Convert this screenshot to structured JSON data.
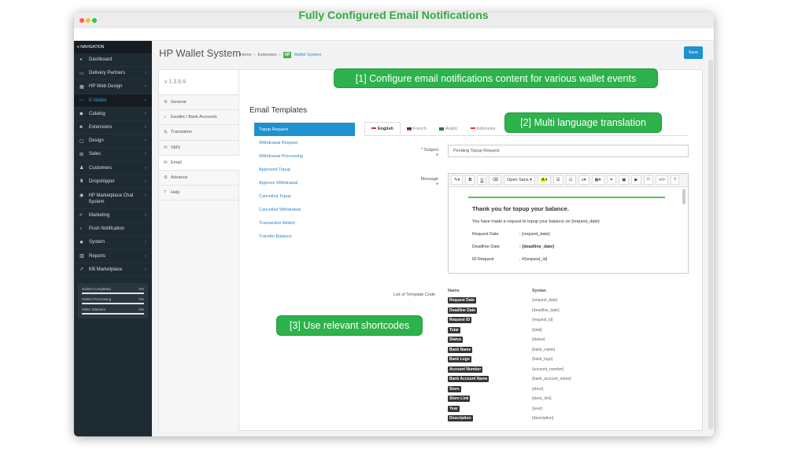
{
  "headline": "Fully Configured Email Notifications",
  "nav": {
    "header": "≡ NAVIGATION",
    "items": [
      {
        "label": "Dashboard",
        "icon": "dashboard-icon",
        "glyph": "◕",
        "chev": false
      },
      {
        "label": "Delivery Partners",
        "icon": "card-icon",
        "glyph": "▭",
        "chev": true
      },
      {
        "label": "HP Web Design",
        "icon": "windows-icon",
        "glyph": "▦",
        "chev": true
      },
      {
        "label": "E-Wallet",
        "icon": "wallet-icon",
        "glyph": "▭",
        "chev": true,
        "active": true
      },
      {
        "label": "Catalog",
        "icon": "tags-icon",
        "glyph": "◆",
        "chev": true
      },
      {
        "label": "Extensions",
        "icon": "puzzle-icon",
        "glyph": "♣",
        "chev": true
      },
      {
        "label": "Design",
        "icon": "desktop-icon",
        "glyph": "▢",
        "chev": true
      },
      {
        "label": "Sales",
        "icon": "cart-icon",
        "glyph": "⊞",
        "chev": true
      },
      {
        "label": "Customers",
        "icon": "user-icon",
        "glyph": "♟",
        "chev": true
      },
      {
        "label": "Dropshipper",
        "icon": "users-icon",
        "glyph": "♜",
        "chev": true
      },
      {
        "label": "HP Marketplace Chat System",
        "icon": "chat-icon",
        "glyph": "◉",
        "chev": true,
        "tall": true
      },
      {
        "label": "Marketing",
        "icon": "share-icon",
        "glyph": "<",
        "chev": true
      },
      {
        "label": "Push Notification",
        "icon": "bell-icon",
        "glyph": "♪",
        "chev": false
      },
      {
        "label": "System",
        "icon": "gear-icon",
        "glyph": "✹",
        "chev": true
      },
      {
        "label": "Reports",
        "icon": "bar-chart-icon",
        "glyph": "▥",
        "chev": true
      },
      {
        "label": "KB Marketplace",
        "icon": "line-chart-icon",
        "glyph": "↗",
        "chev": true
      }
    ],
    "stats": [
      {
        "label": "Orders Completed",
        "value": "0%"
      },
      {
        "label": "Orders Processing",
        "value": "0%"
      },
      {
        "label": "Other Statuses",
        "value": "0%"
      }
    ]
  },
  "page": {
    "title": "HP Wallet System",
    "breadcrumb": [
      "Home",
      "Extension"
    ],
    "badge": "HP",
    "current": "Wallet System",
    "save": "Save"
  },
  "version": "v 1.3.8.9",
  "vtabs": [
    {
      "label": "General",
      "glyph": "⚙",
      "icon": "gear-icon"
    },
    {
      "label": "Ewallet / Bank Accounts",
      "glyph": "⌂",
      "icon": "bank-icon"
    },
    {
      "label": "Translation",
      "glyph": "⇆",
      "icon": "translate-icon"
    },
    {
      "label": "SMS",
      "glyph": "✉",
      "icon": "envelope-icon"
    },
    {
      "label": "Email",
      "glyph": "✉",
      "icon": "envelope-icon",
      "active": true
    },
    {
      "label": "Advance",
      "glyph": "⚙",
      "icon": "cogs-icon"
    },
    {
      "label": "Help",
      "glyph": "?",
      "icon": "help-icon"
    }
  ],
  "callouts": [
    "[1] Configure email notifications content for various wallet events",
    "[2] Multi language translation",
    "[3] Use relevant shortcodes"
  ],
  "templates": {
    "title": "Email Templates",
    "items": [
      "Topup Request",
      "Withdrawal Request",
      "Withdrawal Processing",
      "Approved Topup",
      "Approve Withdrawal",
      "Cancelled Topup",
      "Cancelled Withdrawal",
      "Transaction Added",
      "Transfer Balance"
    ],
    "active": 0
  },
  "languages": [
    {
      "label": "English",
      "active": true
    },
    {
      "label": "French"
    },
    {
      "label": "Arabic"
    },
    {
      "label": "Indonesia"
    }
  ],
  "form": {
    "subject_label": "Subject",
    "subject_value": "Pending Topup Request",
    "message_label": "Message",
    "font": "Open Sans ▾"
  },
  "mail": {
    "heading": "Thank you for topup your balance.",
    "intro": "You have made a request to topup your balance on {request_date}",
    "rows": [
      {
        "k": "Request Date",
        "v": ": {request_date}"
      },
      {
        "k": "Deadline Date",
        "v": ": {deadline_date}"
      },
      {
        "k": "ID Request",
        "v": ": #{request_id}"
      }
    ]
  },
  "codes": {
    "label": "List of Template Code",
    "name_header": "Name",
    "syntax_header": "Syntax",
    "rows": [
      {
        "name": "Request Date",
        "syntax": "{request_date}"
      },
      {
        "name": "Deadline Date",
        "syntax": "{deadline_date}"
      },
      {
        "name": "Request ID",
        "syntax": "{request_id}"
      },
      {
        "name": "Total",
        "syntax": "{total}"
      },
      {
        "name": "Status",
        "syntax": "{status}"
      },
      {
        "name": "Bank Name",
        "syntax": "{bank_name}"
      },
      {
        "name": "Bank Logo",
        "syntax": "{bank_logo}"
      },
      {
        "name": "Account Number",
        "syntax": "{account_number}"
      },
      {
        "name": "Bank Account Name",
        "syntax": "{bank_account_name}"
      },
      {
        "name": "Store",
        "syntax": "{store}"
      },
      {
        "name": "Store Link",
        "syntax": "{store_link}"
      },
      {
        "name": "Year",
        "syntax": "{year}"
      },
      {
        "name": "Description",
        "syntax": "{description}"
      }
    ]
  },
  "colors": {
    "accent": "#1e91cf",
    "callout": "#2db24c",
    "sidebar": "#1f2b33"
  }
}
